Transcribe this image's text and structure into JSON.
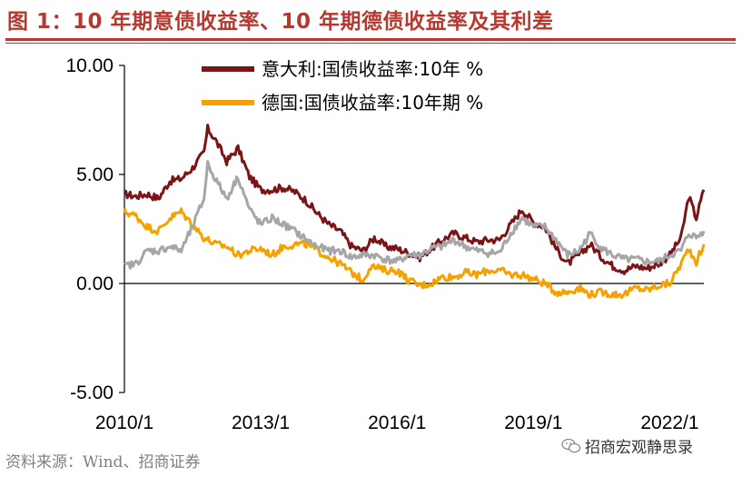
{
  "title": "图 1：10 年期意债收益率、10 年期德债收益率及其利差",
  "source": "资料来源：Wind、招商证券",
  "watermark": "招商宏观静思录",
  "chart_data": {
    "type": "line",
    "x_tick_labels": [
      "2010/1",
      "2013/1",
      "2016/1",
      "2019/1",
      "2022/1"
    ],
    "y_tick_labels": [
      "10.00",
      "5.00",
      "0.00",
      "-5.00"
    ],
    "ylim": [
      -5,
      10
    ],
    "xlim": [
      "2010/1",
      "2022/10"
    ],
    "grid": false,
    "legend_position": "top-center",
    "series": [
      {
        "name": "意大利:国债收益率:10年 %",
        "color": "#7b1416",
        "x": [
          "2010/1",
          "2010/4",
          "2010/7",
          "2010/10",
          "2011/1",
          "2011/4",
          "2011/7",
          "2011/10",
          "2011/11",
          "2012/1",
          "2012/4",
          "2012/7",
          "2012/10",
          "2013/1",
          "2013/4",
          "2013/7",
          "2013/10",
          "2014/1",
          "2014/4",
          "2014/7",
          "2014/10",
          "2015/1",
          "2015/4",
          "2015/7",
          "2015/10",
          "2016/1",
          "2016/4",
          "2016/7",
          "2016/10",
          "2017/1",
          "2017/4",
          "2017/7",
          "2017/10",
          "2018/1",
          "2018/4",
          "2018/7",
          "2018/10",
          "2019/1",
          "2019/4",
          "2019/7",
          "2019/10",
          "2020/1",
          "2020/4",
          "2020/7",
          "2020/10",
          "2021/1",
          "2021/4",
          "2021/7",
          "2021/10",
          "2022/1",
          "2022/4",
          "2022/6",
          "2022/8",
          "2022/10"
        ],
        "values": [
          4.1,
          4.0,
          4.1,
          3.9,
          4.7,
          4.8,
          5.3,
          6.0,
          7.1,
          6.6,
          5.6,
          6.2,
          4.9,
          4.3,
          4.3,
          4.4,
          4.2,
          3.8,
          3.2,
          2.7,
          2.4,
          1.7,
          1.5,
          2.1,
          1.7,
          1.6,
          1.4,
          1.2,
          1.6,
          2.0,
          2.3,
          2.1,
          1.9,
          2.0,
          2.0,
          2.7,
          3.4,
          2.8,
          2.6,
          1.6,
          0.9,
          1.3,
          1.8,
          1.2,
          0.8,
          0.6,
          0.8,
          0.7,
          0.9,
          1.3,
          2.1,
          4.0,
          3.0,
          4.3
        ]
      },
      {
        "name": "德国:国债收益率:10年期 %",
        "color": "#f5a200",
        "x": [
          "2010/1",
          "2010/4",
          "2010/7",
          "2010/10",
          "2011/1",
          "2011/4",
          "2011/7",
          "2011/10",
          "2012/1",
          "2012/4",
          "2012/7",
          "2012/10",
          "2013/1",
          "2013/4",
          "2013/7",
          "2013/10",
          "2014/1",
          "2014/4",
          "2014/7",
          "2014/10",
          "2015/1",
          "2015/4",
          "2015/6",
          "2015/10",
          "2016/1",
          "2016/4",
          "2016/7",
          "2016/10",
          "2017/1",
          "2017/4",
          "2017/7",
          "2017/10",
          "2018/1",
          "2018/4",
          "2018/7",
          "2018/10",
          "2019/1",
          "2019/4",
          "2019/7",
          "2019/10",
          "2020/1",
          "2020/4",
          "2020/7",
          "2020/10",
          "2021/1",
          "2021/4",
          "2021/7",
          "2021/10",
          "2022/1",
          "2022/4",
          "2022/6",
          "2022/8",
          "2022/10"
        ],
        "values": [
          3.3,
          3.1,
          2.6,
          2.4,
          3.0,
          3.3,
          2.7,
          2.1,
          1.8,
          1.7,
          1.3,
          1.5,
          1.6,
          1.3,
          1.7,
          1.8,
          1.8,
          1.5,
          1.2,
          0.9,
          0.5,
          0.15,
          0.8,
          0.6,
          0.6,
          0.15,
          -0.1,
          0.0,
          0.3,
          0.3,
          0.5,
          0.4,
          0.6,
          0.6,
          0.4,
          0.4,
          0.2,
          0.0,
          -0.4,
          -0.4,
          -0.2,
          -0.5,
          -0.4,
          -0.5,
          -0.5,
          -0.2,
          -0.3,
          -0.1,
          0.0,
          0.9,
          1.6,
          1.0,
          1.8
        ]
      },
      {
        "name": "",
        "color": "#a6a6a6",
        "x": [
          "2010/1",
          "2010/4",
          "2010/7",
          "2010/10",
          "2011/1",
          "2011/4",
          "2011/7",
          "2011/10",
          "2011/11",
          "2012/1",
          "2012/4",
          "2012/7",
          "2012/10",
          "2013/1",
          "2013/4",
          "2013/7",
          "2013/10",
          "2014/1",
          "2014/4",
          "2014/7",
          "2014/10",
          "2015/1",
          "2015/4",
          "2015/7",
          "2015/10",
          "2016/1",
          "2016/4",
          "2016/7",
          "2016/10",
          "2017/1",
          "2017/4",
          "2017/7",
          "2017/10",
          "2018/1",
          "2018/4",
          "2018/7",
          "2018/10",
          "2019/1",
          "2019/4",
          "2019/7",
          "2019/10",
          "2020/1",
          "2020/4",
          "2020/7",
          "2020/10",
          "2021/1",
          "2021/4",
          "2021/7",
          "2021/10",
          "2022/1",
          "2022/4",
          "2022/6",
          "2022/8",
          "2022/10"
        ],
        "values": [
          0.8,
          0.9,
          1.5,
          1.5,
          1.7,
          1.5,
          2.6,
          3.9,
          5.5,
          4.8,
          3.9,
          4.9,
          3.4,
          2.7,
          3.0,
          2.7,
          2.4,
          2.0,
          1.7,
          1.5,
          1.5,
          1.2,
          1.3,
          1.3,
          1.1,
          1.0,
          1.3,
          1.3,
          1.6,
          1.7,
          2.0,
          1.7,
          1.5,
          1.4,
          1.4,
          2.3,
          3.0,
          2.6,
          2.6,
          2.0,
          1.3,
          1.5,
          2.3,
          1.6,
          1.3,
          1.1,
          1.1,
          1.0,
          1.0,
          1.3,
          1.5,
          2.3,
          2.1,
          2.4
        ]
      }
    ]
  }
}
